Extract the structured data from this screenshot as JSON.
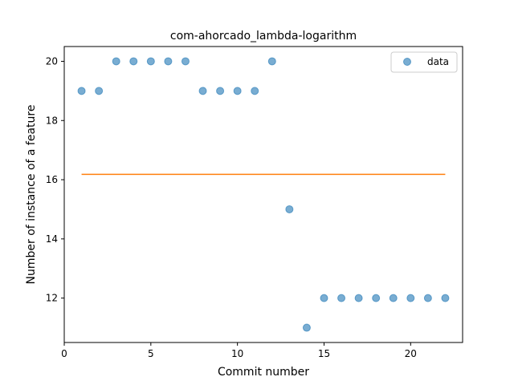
{
  "chart_data": {
    "type": "scatter",
    "title": "com-ahorcado_lambda-logarithm",
    "xlabel": "Commit number",
    "ylabel": "Number of instance of a feature",
    "xlim": [
      0,
      23
    ],
    "ylim": [
      10.5,
      20.5
    ],
    "xticks": [
      0,
      5,
      10,
      15,
      20
    ],
    "yticks": [
      12,
      14,
      16,
      18,
      20
    ],
    "grid": false,
    "legend_position": "top-right",
    "series": [
      {
        "name": "data",
        "kind": "scatter",
        "color": "#1f77b4",
        "x": [
          1,
          2,
          3,
          4,
          5,
          6,
          7,
          8,
          9,
          10,
          11,
          12,
          13,
          14,
          15,
          16,
          17,
          18,
          19,
          20,
          21,
          22
        ],
        "y": [
          19,
          19,
          20,
          20,
          20,
          20,
          20,
          19,
          19,
          19,
          19,
          20,
          15,
          11,
          12,
          12,
          12,
          12,
          12,
          12,
          12,
          12
        ]
      },
      {
        "kind": "line",
        "color": "#ff7f0e",
        "x": [
          1,
          22
        ],
        "y": [
          16.18,
          16.18
        ]
      }
    ]
  }
}
